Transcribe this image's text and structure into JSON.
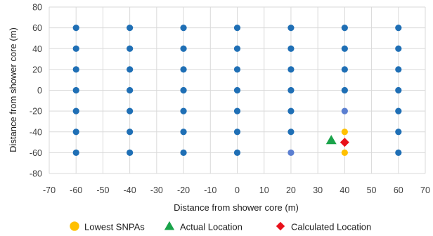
{
  "chart_data": {
    "type": "scatter",
    "xlabel": "Distance from shower core (m)",
    "ylabel": "Distance from shower core (m)",
    "xlim": [
      -70,
      70
    ],
    "ylim": [
      -80,
      80
    ],
    "xticks": [
      -70,
      -60,
      -50,
      -40,
      -30,
      -20,
      -10,
      0,
      10,
      20,
      30,
      40,
      50,
      60,
      70
    ],
    "yticks": [
      -80,
      -60,
      -40,
      -20,
      0,
      20,
      40,
      60,
      80
    ],
    "grid": "vertical and horizontal",
    "legend_position": "bottom",
    "series": [
      {
        "name": "",
        "marker": "circle",
        "color": "#1f6fb5",
        "points": [
          [
            -60,
            60
          ],
          [
            -60,
            40
          ],
          [
            -60,
            20
          ],
          [
            -60,
            0
          ],
          [
            -60,
            -20
          ],
          [
            -60,
            -40
          ],
          [
            -60,
            -60
          ],
          [
            -40,
            60
          ],
          [
            -40,
            40
          ],
          [
            -40,
            20
          ],
          [
            -40,
            0
          ],
          [
            -40,
            -20
          ],
          [
            -40,
            -40
          ],
          [
            -40,
            -60
          ],
          [
            -20,
            60
          ],
          [
            -20,
            40
          ],
          [
            -20,
            20
          ],
          [
            -20,
            0
          ],
          [
            -20,
            -20
          ],
          [
            -20,
            -40
          ],
          [
            -20,
            -60
          ],
          [
            0,
            60
          ],
          [
            0,
            40
          ],
          [
            0,
            20
          ],
          [
            0,
            0
          ],
          [
            0,
            -20
          ],
          [
            0,
            -40
          ],
          [
            0,
            -60
          ],
          [
            20,
            60
          ],
          [
            20,
            40
          ],
          [
            20,
            20
          ],
          [
            20,
            0
          ],
          [
            20,
            -20
          ],
          [
            20,
            -40
          ],
          [
            40,
            60
          ],
          [
            40,
            40
          ],
          [
            40,
            20
          ],
          [
            40,
            0
          ],
          [
            60,
            60
          ],
          [
            60,
            40
          ],
          [
            60,
            20
          ],
          [
            60,
            0
          ],
          [
            60,
            -20
          ],
          [
            60,
            -40
          ],
          [
            60,
            -60
          ]
        ]
      },
      {
        "name": "",
        "marker": "circle",
        "color": "#5b7fd1",
        "points": [
          [
            40,
            -20
          ],
          [
            20,
            -60
          ]
        ]
      },
      {
        "name": "Lowest SNPAs",
        "marker": "circle",
        "color": "#ffc000",
        "points": [
          [
            40,
            -40
          ],
          [
            40,
            -60
          ]
        ]
      },
      {
        "name": "Actual Location",
        "marker": "triangle",
        "color": "#1aa34a",
        "points": [
          [
            35,
            -48
          ]
        ]
      },
      {
        "name": "Calculated Location",
        "marker": "diamond",
        "color": "#e8101a",
        "points": [
          [
            40,
            -50
          ]
        ]
      }
    ]
  }
}
